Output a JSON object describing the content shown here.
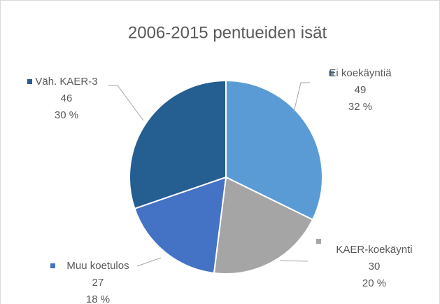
{
  "chart_data": {
    "type": "pie",
    "title": "2006-2015 pentueiden isät",
    "categories": [
      "Ei koekäyntiä",
      "KAER-koekäynti",
      "Muu koetulos",
      "Väh. KAER-3"
    ],
    "values": [
      49,
      30,
      27,
      46
    ],
    "percent_labels": [
      "32 %",
      "20 %",
      "18 %",
      "30 %"
    ],
    "colors": [
      "#5b9bd5",
      "#a5a5a5",
      "#4472c4",
      "#255e91"
    ]
  }
}
